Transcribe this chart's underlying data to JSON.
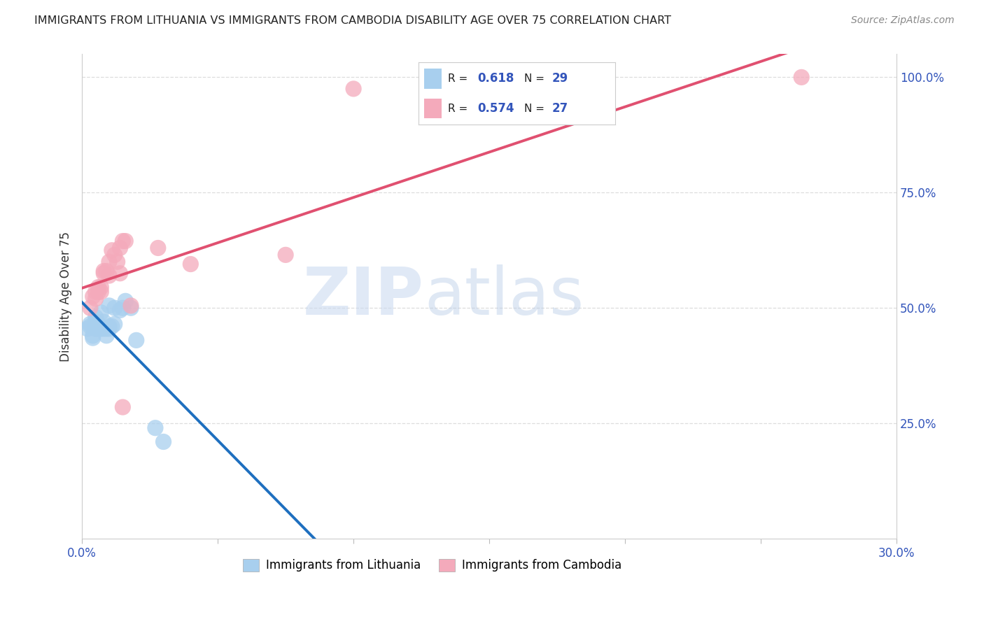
{
  "title": "IMMIGRANTS FROM LITHUANIA VS IMMIGRANTS FROM CAMBODIA DISABILITY AGE OVER 75 CORRELATION CHART",
  "source": "Source: ZipAtlas.com",
  "ylabel": "Disability Age Over 75",
  "xlim": [
    0.0,
    0.3
  ],
  "ylim": [
    0.0,
    1.05
  ],
  "xticks": [
    0.0,
    0.05,
    0.1,
    0.15,
    0.2,
    0.25,
    0.3
  ],
  "xticklabels": [
    "0.0%",
    "",
    "",
    "",
    "",
    "",
    "30.0%"
  ],
  "yticks": [
    0.0,
    0.25,
    0.5,
    0.75,
    1.0
  ],
  "yticklabels": [
    "",
    "25.0%",
    "50.0%",
    "75.0%",
    "100.0%"
  ],
  "legend_labels": [
    "Immigrants from Lithuania",
    "Immigrants from Cambodia"
  ],
  "legend_R": [
    "0.618",
    "0.574"
  ],
  "legend_N": [
    "29",
    "27"
  ],
  "blue_color": "#A8CFEE",
  "pink_color": "#F4AABB",
  "blue_line_color": "#1E6FBF",
  "pink_line_color": "#E05070",
  "blue_scatter": [
    [
      0.002,
      0.455
    ],
    [
      0.003,
      0.46
    ],
    [
      0.003,
      0.465
    ],
    [
      0.004,
      0.44
    ],
    [
      0.004,
      0.435
    ],
    [
      0.005,
      0.47
    ],
    [
      0.005,
      0.455
    ],
    [
      0.005,
      0.48
    ],
    [
      0.006,
      0.455
    ],
    [
      0.006,
      0.465
    ],
    [
      0.007,
      0.455
    ],
    [
      0.007,
      0.49
    ],
    [
      0.008,
      0.455
    ],
    [
      0.008,
      0.47
    ],
    [
      0.009,
      0.44
    ],
    [
      0.009,
      0.455
    ],
    [
      0.01,
      0.455
    ],
    [
      0.01,
      0.46
    ],
    [
      0.01,
      0.505
    ],
    [
      0.011,
      0.46
    ],
    [
      0.012,
      0.465
    ],
    [
      0.012,
      0.5
    ],
    [
      0.014,
      0.495
    ],
    [
      0.015,
      0.5
    ],
    [
      0.016,
      0.515
    ],
    [
      0.018,
      0.5
    ],
    [
      0.02,
      0.43
    ],
    [
      0.027,
      0.24
    ],
    [
      0.03,
      0.21
    ]
  ],
  "pink_scatter": [
    [
      0.003,
      0.5
    ],
    [
      0.004,
      0.525
    ],
    [
      0.005,
      0.535
    ],
    [
      0.005,
      0.52
    ],
    [
      0.006,
      0.535
    ],
    [
      0.006,
      0.545
    ],
    [
      0.007,
      0.535
    ],
    [
      0.007,
      0.545
    ],
    [
      0.008,
      0.575
    ],
    [
      0.008,
      0.58
    ],
    [
      0.009,
      0.58
    ],
    [
      0.01,
      0.57
    ],
    [
      0.01,
      0.6
    ],
    [
      0.011,
      0.625
    ],
    [
      0.012,
      0.615
    ],
    [
      0.013,
      0.6
    ],
    [
      0.014,
      0.575
    ],
    [
      0.014,
      0.63
    ],
    [
      0.015,
      0.645
    ],
    [
      0.016,
      0.645
    ],
    [
      0.018,
      0.505
    ],
    [
      0.028,
      0.63
    ],
    [
      0.04,
      0.595
    ],
    [
      0.075,
      0.615
    ],
    [
      0.1,
      0.975
    ],
    [
      0.265,
      1.0
    ],
    [
      0.015,
      0.285
    ]
  ],
  "watermark_zip": "ZIP",
  "watermark_atlas": "atlas",
  "background_color": "#FFFFFF",
  "grid_color": "#DDDDDD"
}
